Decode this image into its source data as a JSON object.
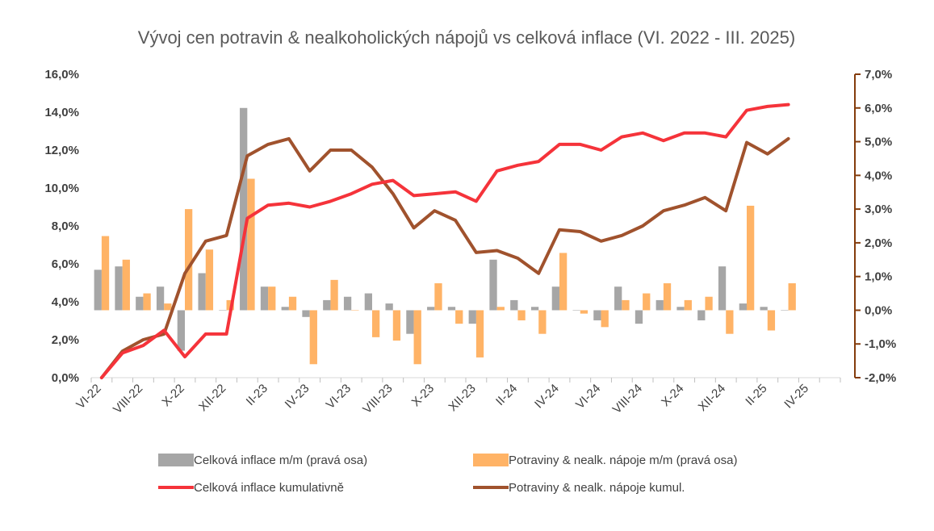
{
  "chart_data": {
    "type": "bar+line",
    "title": "Vývoj cen potravin & nealkoholických nápojů vs celková inflace (VI. 2022 - III. 2025)",
    "left_axis": {
      "min": 0,
      "max": 16,
      "step": 2,
      "tick_labels": [
        "0,0%",
        "2,0%",
        "4,0%",
        "6,0%",
        "8,0%",
        "10,0%",
        "12,0%",
        "14,0%",
        "16,0%"
      ]
    },
    "right_axis": {
      "min": -2,
      "max": 7,
      "step": 1,
      "tick_labels": [
        "-2,0%",
        "-1,0%",
        "0,0%",
        "1,0%",
        "2,0%",
        "3,0%",
        "4,0%",
        "5,0%",
        "6,0%",
        "7,0%"
      ]
    },
    "x_tick_labels": [
      "VI-22",
      "VIII-22",
      "X-22",
      "XII-22",
      "II-23",
      "IV-23",
      "VI-23",
      "VIII-23",
      "X-23",
      "XII-23",
      "II-24",
      "IV-24",
      "VI-24",
      "VIII-24",
      "X-24",
      "XII-24",
      "II-25",
      "IV-25"
    ],
    "months": [
      "VI-22",
      "VII-22",
      "VIII-22",
      "IX-22",
      "X-22",
      "XI-22",
      "XII-22",
      "I-23",
      "II-23",
      "III-23",
      "IV-23",
      "V-23",
      "VI-23",
      "VII-23",
      "VIII-23",
      "IX-23",
      "X-23",
      "XI-23",
      "XII-23",
      "I-24",
      "II-24",
      "III-24",
      "IV-24",
      "V-24",
      "VI-24",
      "VII-24",
      "VIII-24",
      "IX-24",
      "X-24",
      "XI-24",
      "XII-24",
      "I-25",
      "II-25",
      "III-25"
    ],
    "series": [
      {
        "name": "Celková inflace m/m (pravá osa)",
        "type": "bar",
        "axis": "right",
        "color": "#a6a6a6",
        "values": [
          1.2,
          1.3,
          0.4,
          0.7,
          -1.2,
          1.1,
          0.0,
          6.0,
          0.7,
          0.1,
          -0.2,
          0.3,
          0.4,
          0.5,
          0.2,
          -0.7,
          0.1,
          0.1,
          -0.4,
          1.5,
          0.3,
          0.1,
          0.7,
          0.0,
          -0.3,
          0.7,
          -0.4,
          0.3,
          0.1,
          -0.3,
          1.3,
          0.2,
          0.1,
          0.0
        ]
      },
      {
        "name": "Potraviny & nealk. nápoje m/m (pravá osa)",
        "type": "bar",
        "axis": "right",
        "color": "#ffb366",
        "values": [
          2.2,
          1.5,
          0.5,
          0.2,
          3.0,
          1.8,
          0.3,
          3.9,
          0.7,
          0.4,
          -1.6,
          0.9,
          0.0,
          -0.8,
          -0.9,
          -1.6,
          0.8,
          -0.4,
          -1.4,
          0.1,
          -0.3,
          -0.7,
          1.7,
          -0.1,
          -0.5,
          0.3,
          0.5,
          0.8,
          0.3,
          0.4,
          -0.7,
          3.1,
          -0.6,
          0.8
        ]
      },
      {
        "name": "Celková inflace kumulativně",
        "type": "line",
        "axis": "left",
        "color": "#f5333a",
        "values": [
          0.0,
          1.3,
          1.7,
          2.5,
          1.1,
          2.3,
          2.3,
          8.4,
          9.1,
          9.2,
          9.0,
          9.3,
          9.7,
          10.2,
          10.4,
          9.6,
          9.7,
          9.8,
          9.3,
          10.9,
          11.2,
          11.4,
          12.3,
          12.3,
          12.0,
          12.7,
          12.9,
          12.5,
          12.9,
          12.9,
          12.7,
          14.1,
          14.3,
          14.4
        ]
      },
      {
        "name": "Potraviny & nealk. nápoje kumul.",
        "type": "line",
        "axis": "left",
        "color": "#a0522d",
        "values": [
          0.0,
          1.4,
          2.0,
          2.3,
          5.5,
          7.2,
          7.5,
          11.7,
          12.3,
          12.6,
          10.9,
          12.0,
          12.0,
          11.1,
          9.7,
          7.9,
          8.8,
          8.3,
          6.6,
          6.7,
          6.3,
          5.5,
          7.8,
          7.7,
          7.2,
          7.5,
          8.0,
          8.8,
          9.1,
          9.5,
          8.8,
          12.4,
          11.8,
          12.6
        ]
      }
    ],
    "legend_position": "bottom",
    "grid": false
  }
}
